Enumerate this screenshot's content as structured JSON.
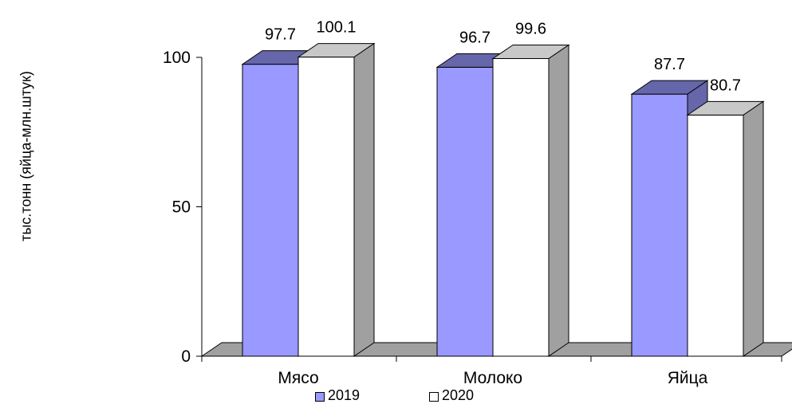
{
  "chart_data": {
    "type": "bar",
    "title": "",
    "xlabel": "",
    "ylabel": "тыс.тонн (яйца-млн.штук)",
    "categories": [
      "Мясо",
      "Молоко",
      "Яйца"
    ],
    "series": [
      {
        "name": "2019",
        "values": [
          97.7,
          96.7,
          87.7
        ],
        "value_labels": [
          "97.7",
          "96.7",
          "87.7"
        ],
        "color": "#9999ff",
        "top_color": "#6666aa",
        "side_color": "#6666aa"
      },
      {
        "name": "2020",
        "values": [
          100.1,
          99.6,
          80.7
        ],
        "value_labels": [
          "100.1",
          "99.6",
          "80.7"
        ],
        "color": "#ffffff",
        "top_color": "#c8c8c8",
        "side_color": "#a0a0a0"
      }
    ],
    "yticks": [
      0,
      50,
      100
    ],
    "ytick_labels": [
      "0",
      "50",
      "100"
    ],
    "ylim": [
      0,
      100
    ],
    "grid": false,
    "legend_position": "bottom",
    "three_d": true
  }
}
